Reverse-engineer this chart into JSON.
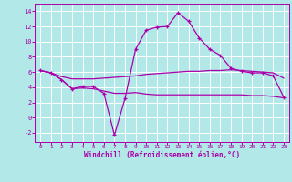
{
  "background_color": "#b2e8e8",
  "grid_color": "#ffffff",
  "line_color": "#aa00aa",
  "xlabel": "Windchill (Refroidissement éolien,°C)",
  "xlim": [
    -0.5,
    23.5
  ],
  "ylim": [
    -3.2,
    15.0
  ],
  "yticks": [
    -2,
    0,
    2,
    4,
    6,
    8,
    10,
    12,
    14
  ],
  "xticks": [
    0,
    1,
    2,
    3,
    4,
    5,
    6,
    7,
    8,
    9,
    10,
    11,
    12,
    13,
    14,
    15,
    16,
    17,
    18,
    19,
    20,
    21,
    22,
    23
  ],
  "line1_x": [
    0,
    1,
    2,
    3,
    4,
    5,
    6,
    7,
    8,
    9,
    10,
    11,
    12,
    13,
    14,
    15,
    16,
    17,
    18,
    19,
    20,
    21,
    22,
    23
  ],
  "line1_y": [
    6.2,
    5.9,
    5.0,
    3.8,
    4.1,
    4.1,
    3.2,
    -2.3,
    2.5,
    9.0,
    11.5,
    11.9,
    12.0,
    13.8,
    12.7,
    10.5,
    9.0,
    8.2,
    6.5,
    6.1,
    5.9,
    5.9,
    5.5,
    2.7
  ],
  "line2_x": [
    0,
    1,
    2,
    3,
    4,
    5,
    6,
    7,
    8,
    9,
    10,
    11,
    12,
    13,
    14,
    15,
    16,
    17,
    18,
    19,
    20,
    21,
    22,
    23
  ],
  "line2_y": [
    6.2,
    5.9,
    5.4,
    5.1,
    5.1,
    5.1,
    5.2,
    5.3,
    5.4,
    5.5,
    5.7,
    5.8,
    5.9,
    6.0,
    6.1,
    6.1,
    6.2,
    6.2,
    6.3,
    6.2,
    6.1,
    6.0,
    5.9,
    5.2
  ],
  "line3_x": [
    0,
    1,
    2,
    3,
    4,
    5,
    6,
    7,
    8,
    9,
    10,
    11,
    12,
    13,
    14,
    15,
    16,
    17,
    18,
    19,
    20,
    21,
    22,
    23
  ],
  "line3_y": [
    6.2,
    5.9,
    5.0,
    3.8,
    3.9,
    3.8,
    3.5,
    3.2,
    3.2,
    3.3,
    3.1,
    3.0,
    3.0,
    3.0,
    3.0,
    3.0,
    3.0,
    3.0,
    3.0,
    3.0,
    2.9,
    2.9,
    2.8,
    2.6
  ]
}
